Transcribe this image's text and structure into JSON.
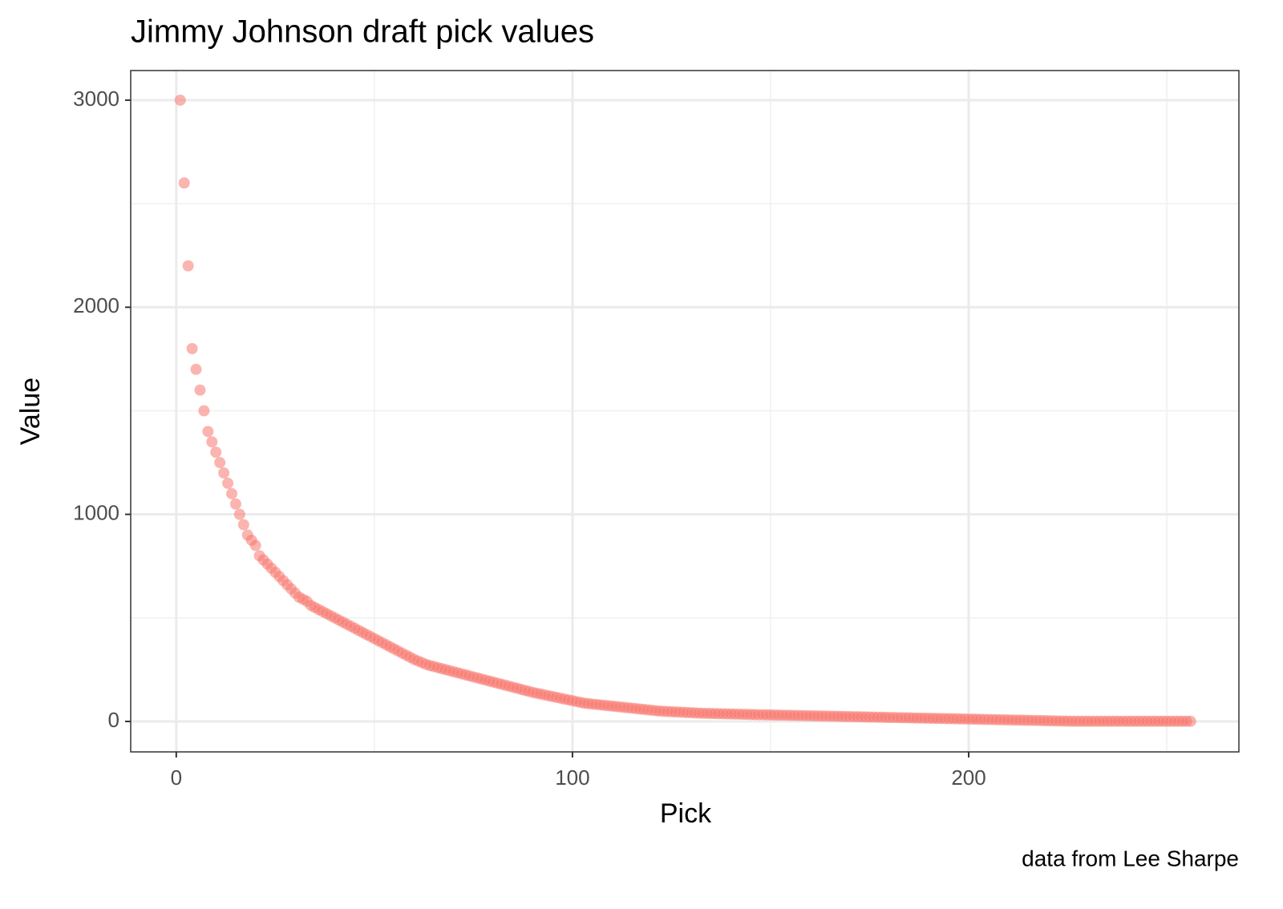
{
  "chart_data": {
    "type": "scatter",
    "title": "Jimmy Johnson draft pick values",
    "x_label": "Pick",
    "y_label": "Value",
    "caption": "data from Lee Sharpe",
    "color": "#F8766D",
    "x": [
      1,
      2,
      3,
      4,
      5,
      6,
      7,
      8,
      9,
      10,
      11,
      12,
      13,
      14,
      15,
      16,
      17,
      18,
      19,
      20,
      21,
      22,
      23,
      24,
      25,
      26,
      27,
      28,
      29,
      30,
      31,
      32,
      33,
      34,
      35,
      36,
      37,
      38,
      39,
      40,
      41,
      42,
      43,
      44,
      45,
      46,
      47,
      48,
      49,
      50,
      51,
      52,
      53,
      54,
      55,
      56,
      57,
      58,
      59,
      60,
      61,
      62,
      63,
      64,
      65,
      66,
      67,
      68,
      69,
      70,
      71,
      72,
      73,
      74,
      75,
      76,
      77,
      78,
      79,
      80,
      81,
      82,
      83,
      84,
      85,
      86,
      87,
      88,
      89,
      90,
      91,
      92,
      93,
      94,
      95,
      96,
      97,
      98,
      99,
      100,
      101,
      102,
      103,
      104,
      105,
      106,
      107,
      108,
      109,
      110,
      111,
      112,
      113,
      114,
      115,
      116,
      117,
      118,
      119,
      120,
      121,
      122,
      123,
      124,
      125,
      126,
      127,
      128,
      129,
      130,
      131,
      132,
      133,
      134,
      135,
      136,
      137,
      138,
      139,
      140,
      141,
      142,
      143,
      144,
      145,
      146,
      147,
      148,
      149,
      150,
      151,
      152,
      153,
      154,
      155,
      156,
      157,
      158,
      159,
      160,
      161,
      162,
      163,
      164,
      165,
      166,
      167,
      168,
      169,
      170,
      171,
      172,
      173,
      174,
      175,
      176,
      177,
      178,
      179,
      180,
      181,
      182,
      183,
      184,
      185,
      186,
      187,
      188,
      189,
      190,
      191,
      192,
      193,
      194,
      195,
      196,
      197,
      198,
      199,
      200,
      201,
      202,
      203,
      204,
      205,
      206,
      207,
      208,
      209,
      210,
      211,
      212,
      213,
      214,
      215,
      216,
      217,
      218,
      219,
      220,
      221,
      222,
      223,
      224,
      225,
      226,
      227,
      228,
      229,
      230,
      231,
      232,
      233,
      234,
      235,
      236,
      237,
      238,
      239,
      240,
      241,
      242,
      243,
      244,
      245,
      246,
      247,
      248,
      249,
      250,
      251,
      252,
      253,
      254,
      255,
      256
    ],
    "values": [
      3000,
      2600,
      2200,
      1800,
      1700,
      1600,
      1500,
      1400,
      1350,
      1300,
      1250,
      1200,
      1150,
      1100,
      1050,
      1000,
      950,
      900,
      875,
      850,
      800,
      780,
      760,
      740,
      720,
      700,
      680,
      660,
      640,
      620,
      600,
      590,
      580,
      560,
      550,
      540,
      530,
      520,
      510,
      500,
      490,
      480,
      470,
      460,
      450,
      440,
      430,
      420,
      410,
      400,
      390,
      380,
      370,
      360,
      350,
      340,
      330,
      320,
      310,
      300,
      292,
      284,
      276,
      270,
      265,
      260,
      255,
      250,
      245,
      240,
      235,
      230,
      225,
      220,
      215,
      210,
      205,
      200,
      195,
      190,
      185,
      180,
      175,
      170,
      165,
      160,
      155,
      150,
      145,
      140,
      136,
      132,
      128,
      124,
      120,
      116,
      112,
      108,
      104,
      100,
      96,
      92,
      88,
      86,
      84,
      82,
      80,
      78,
      76,
      74,
      72,
      70,
      68,
      66,
      64,
      62,
      60,
      58,
      56,
      54,
      52,
      50,
      49,
      48,
      47,
      46,
      45,
      44,
      43,
      42,
      41,
      40,
      39.5,
      39,
      38.5,
      38,
      37.5,
      37,
      36.5,
      36,
      35.5,
      35,
      34.5,
      34,
      33.5,
      33,
      32.6,
      32.2,
      31.8,
      31.4,
      31,
      30.6,
      30.2,
      29.8,
      29.4,
      29,
      28.6,
      28.2,
      27.8,
      27.4,
      27,
      26.6,
      26.2,
      25.8,
      25.4,
      25,
      24.6,
      24.2,
      23.8,
      23.4,
      23,
      22.6,
      22.2,
      21.8,
      21.4,
      21,
      20.6,
      20.2,
      19.8,
      19.4,
      19,
      18.6,
      18.2,
      17.8,
      17.4,
      17,
      16.6,
      16.2,
      15.8,
      15.4,
      15,
      14.6,
      14.2,
      13.8,
      13.4,
      13,
      12.6,
      12.2,
      11.8,
      11.4,
      11,
      10.6,
      10.2,
      9.8,
      9.4,
      9,
      8.6,
      8.2,
      7.8,
      7.4,
      7,
      6.6,
      6.2,
      5.8,
      5.4,
      5,
      4.6,
      4.2,
      3.8,
      3.4,
      3,
      2.6,
      2.2,
      1.8,
      1.4,
      1,
      1,
      1,
      1,
      1,
      1,
      1,
      1,
      1,
      1,
      1,
      1,
      1,
      1,
      1,
      1,
      1,
      1,
      1,
      1,
      1,
      1,
      1,
      1,
      1,
      1,
      1,
      1,
      1,
      1,
      1
    ],
    "xlim": [
      -11.5,
      268.2
    ],
    "ylim": [
      -147,
      3143
    ],
    "xticks": [
      0,
      100,
      200
    ],
    "yticks": [
      0,
      1000,
      2000,
      3000
    ],
    "minor_xticks": [
      50,
      150,
      250
    ],
    "minor_yticks": [
      500,
      1500,
      2500
    ],
    "grid": true
  }
}
